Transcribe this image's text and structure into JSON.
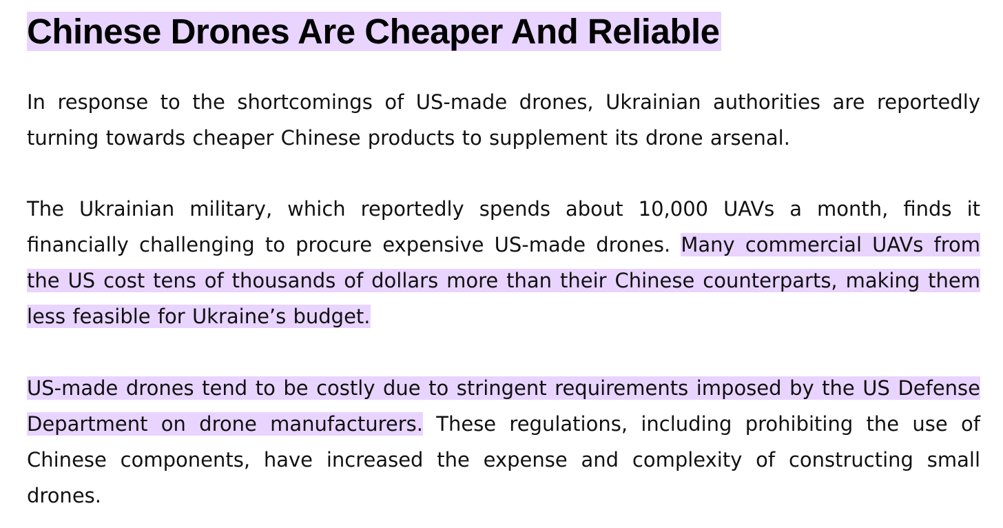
{
  "article": {
    "title": "Chinese Drones Are Cheaper And Reliable",
    "paragraphs": [
      {
        "plain_before": "In response to the shortcomings of US-made drones, Ukrainian authorities are reportedly turning towards cheaper Chinese products to supplement its drone arsenal.",
        "highlight": "",
        "plain_after": ""
      },
      {
        "plain_before": "The Ukrainian military, which reportedly spends about 10,000 UAVs a month, finds it financially challenging to procure expensive US-made drones. ",
        "highlight": "Many commercial UAVs from the US cost tens of thousands of dollars more than their Chinese counterparts, making them less feasible for Ukraine’s budget.",
        "plain_after": ""
      },
      {
        "plain_before": "",
        "highlight": "US-made drones tend to be costly due to stringent requirements imposed by the US Defense Department on drone manufacturers.",
        "plain_after": " These regulations, including prohibiting the use of Chinese components, have increased the expense and complexity of constructing small drones."
      }
    ]
  },
  "colors": {
    "highlight": "#e8d4ff",
    "text": "#111111",
    "background": "#ffffff"
  }
}
